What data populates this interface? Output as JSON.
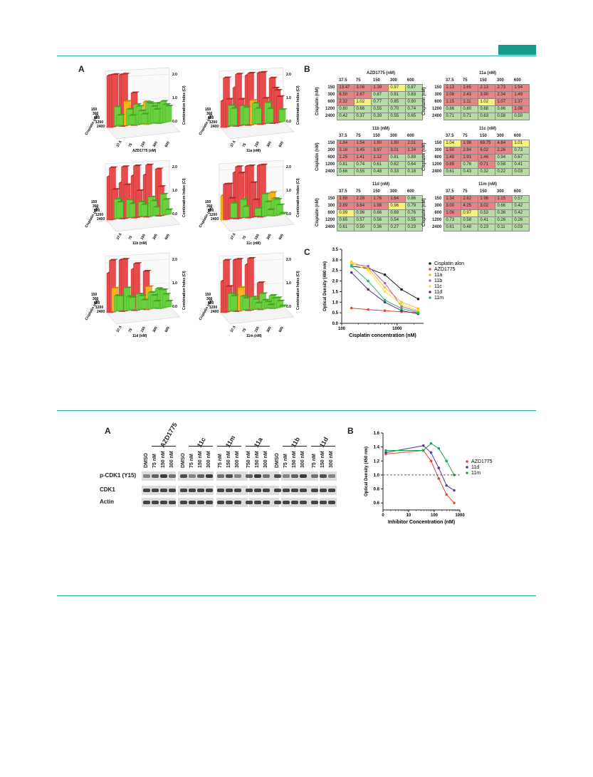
{
  "panels_top": {
    "A_letter": "A",
    "B_letter": "B",
    "C_letter": "C"
  },
  "bar3d": {
    "ylabel": "Cisplatin (nM)",
    "zlabel": "Combination Index (CI)",
    "ztick": [
      "0.0",
      "1.0",
      "2.0"
    ],
    "rows": [
      "150",
      "300",
      "600",
      "1200",
      "2400"
    ],
    "cols": [
      "37.5",
      "75",
      "150",
      "300",
      "600"
    ],
    "plots": [
      {
        "name": "AZD1775 (nM)"
      },
      {
        "name": "11a (nM)"
      },
      {
        "name": "11b (nM)"
      },
      {
        "name": "11c (nM)"
      },
      {
        "name": "11d (nM)"
      },
      {
        "name": "11m (nM)"
      }
    ]
  },
  "grids": {
    "ylabel": "Cisplatin (nM)",
    "cols": [
      "37.5",
      "75",
      "150",
      "300",
      "600"
    ],
    "rows": [
      "150",
      "300",
      "600",
      "1200",
      "2400"
    ],
    "tables": [
      {
        "title": "AZD1775 (nM)",
        "values": [
          [
            "13.47",
            "3.06",
            "1.39",
            "0.97",
            "0.87"
          ],
          [
            "6.50",
            "2.67",
            "0.87",
            "0.91",
            "0.83"
          ],
          [
            "2.32",
            "1.02",
            "0.77",
            "0.85",
            "0.90"
          ],
          [
            "0.80",
            "0.66",
            "0.55",
            "0.70",
            "0.74"
          ],
          [
            "0.42",
            "0.37",
            "0.39",
            "0.55",
            "0.65"
          ]
        ],
        "colors": [
          [
            "r",
            "r",
            "r",
            "y",
            "g"
          ],
          [
            "r",
            "r",
            "g",
            "g",
            "g"
          ],
          [
            "r",
            "y",
            "g",
            "g",
            "g"
          ],
          [
            "g",
            "g",
            "g",
            "g",
            "g"
          ],
          [
            "g",
            "g",
            "g",
            "g",
            "g"
          ]
        ]
      },
      {
        "title": "11a (nM)",
        "values": [
          [
            "1.13",
            "1.65",
            "2.13",
            "2.73",
            "1.94"
          ],
          [
            "2.08",
            "2.43",
            "3.90",
            "2.34",
            "1.49"
          ],
          [
            "1.15",
            "1.11",
            "1.02",
            "1.07",
            "1.37"
          ],
          [
            "0.86",
            "0.80",
            "0.88",
            "0.86",
            "1.08"
          ],
          [
            "0.71",
            "0.71",
            "0.63",
            "0.58",
            "0.50"
          ]
        ],
        "colors": [
          [
            "r",
            "r",
            "r",
            "r",
            "r"
          ],
          [
            "r",
            "r",
            "r",
            "r",
            "r"
          ],
          [
            "r",
            "r",
            "y",
            "r",
            "r"
          ],
          [
            "g",
            "g",
            "g",
            "g",
            "r"
          ],
          [
            "g",
            "g",
            "g",
            "g",
            "g"
          ]
        ]
      },
      {
        "title": "11b (nM)",
        "values": [
          [
            "1.84",
            "1.54",
            "1.80",
            "1.80",
            "2.01"
          ],
          [
            "3.16",
            "3.45",
            "3.97",
            "3.01",
            "1.24"
          ],
          [
            "1.25",
            "1.41",
            "1.12",
            "0.81",
            "0.89"
          ],
          [
            "0.81",
            "0.74",
            "0.61",
            "0.62",
            "0.64"
          ],
          [
            "0.66",
            "0.55",
            "0.48",
            "0.33",
            "0.18"
          ]
        ],
        "colors": [
          [
            "r",
            "r",
            "r",
            "r",
            "r"
          ],
          [
            "r",
            "r",
            "r",
            "r",
            "r"
          ],
          [
            "r",
            "r",
            "r",
            "g",
            "g"
          ],
          [
            "g",
            "g",
            "g",
            "g",
            "g"
          ],
          [
            "g",
            "g",
            "g",
            "g",
            "g"
          ]
        ]
      },
      {
        "title": "11c (nM)",
        "values": [
          [
            "1.04",
            "1.98",
            "69.75",
            "4.64",
            "1.01"
          ],
          [
            "1.50",
            "2.84",
            "6.02",
            "2.26",
            "0.73"
          ],
          [
            "1.48",
            "1.91",
            "1.46",
            "0.94",
            "0.67"
          ],
          [
            "0.85",
            "0.76",
            "0.71",
            "0.58",
            "0.41"
          ],
          [
            "0.61",
            "0.43",
            "0.32",
            "0.22",
            "0.03"
          ]
        ],
        "colors": [
          [
            "y",
            "r",
            "r",
            "r",
            "y"
          ],
          [
            "r",
            "r",
            "r",
            "r",
            "g"
          ],
          [
            "r",
            "r",
            "r",
            "g",
            "g"
          ],
          [
            "r",
            "g",
            "r",
            "g",
            "g"
          ],
          [
            "g",
            "g",
            "g",
            "g",
            "g"
          ]
        ]
      },
      {
        "title": "11d (nM)",
        "values": [
          [
            "1.68",
            "2.28",
            "1.76",
            "1.64",
            "0.86"
          ],
          [
            "2.89",
            "3.64",
            "1.98",
            "0.96",
            "0.79"
          ],
          [
            "0.99",
            "0.96",
            "0.66",
            "0.69",
            "0.76"
          ],
          [
            "0.65",
            "0.57",
            "0.56",
            "0.54",
            "0.55"
          ],
          [
            "0.61",
            "0.50",
            "0.36",
            "0.27",
            "0.23"
          ]
        ],
        "colors": [
          [
            "r",
            "r",
            "r",
            "r",
            "g"
          ],
          [
            "r",
            "r",
            "r",
            "y",
            "g"
          ],
          [
            "y",
            "g",
            "g",
            "g",
            "g"
          ],
          [
            "g",
            "g",
            "g",
            "g",
            "g"
          ],
          [
            "g",
            "g",
            "g",
            "g",
            "g"
          ]
        ]
      },
      {
        "title": "11m (nM)",
        "values": [
          [
            "1.34",
            "2.82",
            "1.96",
            "1.15",
            "0.57"
          ],
          [
            "3.00",
            "4.25",
            "3.02",
            "0.66",
            "0.42"
          ],
          [
            "1.06",
            "0.97",
            "0.53",
            "0.36",
            "0.42"
          ],
          [
            "0.73",
            "0.58",
            "0.41",
            "0.26",
            "0.26"
          ],
          [
            "0.61",
            "0.48",
            "0.23",
            "0.11",
            "0.03"
          ]
        ],
        "colors": [
          [
            "r",
            "r",
            "r",
            "r",
            "g"
          ],
          [
            "r",
            "r",
            "r",
            "g",
            "g"
          ],
          [
            "r",
            "y",
            "g",
            "g",
            "g"
          ],
          [
            "g",
            "g",
            "g",
            "g",
            "g"
          ],
          [
            "g",
            "g",
            "g",
            "g",
            "g"
          ]
        ]
      }
    ]
  },
  "chart_data": [
    {
      "type": "line",
      "ylabel": "Optical Density (490 nm)",
      "xlabel": "Cisplatin concentration (nM)",
      "xscale": "log",
      "xlim": [
        100,
        3000
      ],
      "ylim": [
        0.0,
        3.5
      ],
      "yticks": [
        "0.0",
        "0.5",
        "1.0",
        "1.5",
        "2.0",
        "2.5",
        "3.0",
        "3.5"
      ],
      "xticks": [
        "100",
        "1000"
      ],
      "legend_position": "right",
      "x": [
        150,
        300,
        600,
        1200,
        2400
      ],
      "series": [
        {
          "name": "Cisplatin alone",
          "color": "#222222",
          "values": [
            2.7,
            2.6,
            2.3,
            1.6,
            1.15
          ]
        },
        {
          "name": "AZD1775",
          "color": "#e8453c",
          "values": [
            0.72,
            0.65,
            0.6,
            0.55,
            0.5
          ]
        },
        {
          "name": "11a",
          "color": "#f2c12e",
          "values": [
            2.9,
            2.6,
            1.7,
            1.0,
            0.7
          ]
        },
        {
          "name": "11b",
          "color": "#b160c9",
          "values": [
            2.8,
            2.7,
            1.9,
            0.8,
            0.55
          ]
        },
        {
          "name": "11c",
          "color": "#f5e13c",
          "values": [
            2.85,
            2.5,
            1.5,
            0.9,
            0.6
          ]
        },
        {
          "name": "11d",
          "color": "#5a2d82",
          "values": [
            2.4,
            1.6,
            1.0,
            0.6,
            0.45
          ]
        },
        {
          "name": "11m",
          "color": "#2ab36a",
          "values": [
            2.7,
            2.0,
            1.1,
            0.7,
            0.5
          ]
        }
      ]
    },
    {
      "type": "line",
      "ylabel": "Optical Density (450 nm)",
      "xlabel": "Inhibitor Concentration (nM)",
      "xscale": "log",
      "xlim": [
        1,
        1000
      ],
      "ylim": [
        0.5,
        1.6
      ],
      "yticks": [
        "0.6",
        "0.8",
        "1.0",
        "1.2",
        "1.4",
        "1.6"
      ],
      "xticks": [
        "0",
        "10",
        "100",
        "1000"
      ],
      "legend_position": "right",
      "x": [
        0,
        37.5,
        75,
        150,
        300,
        600
      ],
      "series": [
        {
          "name": "AZD1775",
          "color": "#e8453c",
          "values": [
            1.3,
            1.35,
            1.2,
            0.95,
            0.72,
            0.6
          ]
        },
        {
          "name": "11d",
          "color": "#5a3a99",
          "values": [
            1.32,
            1.42,
            1.32,
            1.1,
            0.85,
            0.78
          ]
        },
        {
          "name": "11m",
          "color": "#18a84a",
          "values": [
            1.35,
            1.35,
            1.45,
            1.38,
            1.2,
            1.0
          ]
        }
      ]
    }
  ],
  "western": {
    "letter_A": "A",
    "letter_B": "B",
    "rows": [
      "p-CDK1 (Y15)",
      "CDK1",
      "Actin"
    ],
    "groups": [
      {
        "head": "",
        "cols": [
          "DMSO"
        ]
      },
      {
        "head": "AZD1775",
        "cols": [
          "75 nM",
          "150 nM",
          "300 nM"
        ]
      },
      {
        "head": "",
        "cols": [
          "DMSO"
        ]
      },
      {
        "head": "11c",
        "cols": [
          "75 nM",
          "150 nM",
          "300 nM"
        ]
      },
      {
        "head": "11m",
        "cols": [
          "75 nM",
          "150 nM",
          "300 nM"
        ]
      },
      {
        "head": "11a",
        "cols": [
          "750 nM",
          "150 nM",
          "300 nM"
        ]
      },
      {
        "head": "",
        "cols": [
          "DMSO"
        ]
      },
      {
        "head": "11b",
        "cols": [
          "75 nM",
          "150 nM",
          "300 nM"
        ]
      },
      {
        "head": "11d",
        "cols": [
          "75 nM",
          "150 nM",
          "300 nM"
        ]
      }
    ]
  }
}
